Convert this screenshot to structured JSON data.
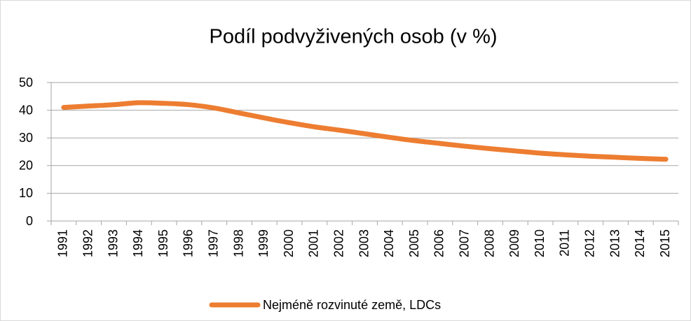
{
  "chart_data": {
    "type": "line",
    "title": "Podíl podvyživených osob (v %)",
    "categories": [
      "1991",
      "1992",
      "1993",
      "1994",
      "1995",
      "1996",
      "1997",
      "1998",
      "1999",
      "2000",
      "2001",
      "2002",
      "2003",
      "2004",
      "2005",
      "2006",
      "2007",
      "2008",
      "2009",
      "2010",
      "2011",
      "2012",
      "2013",
      "2014",
      "2015"
    ],
    "series": [
      {
        "name": "Nejméně rozvinuté země, LDCs",
        "color": "#ED7D31",
        "values": [
          41,
          41.5,
          42,
          42.7,
          42.5,
          42,
          40.8,
          39,
          37.2,
          35.5,
          34,
          32.8,
          31.5,
          30.2,
          29,
          28,
          27,
          26.1,
          25.3,
          24.5,
          23.9,
          23.4,
          23,
          22.6,
          22.3
        ]
      }
    ],
    "ylim": [
      0,
      50
    ],
    "yticks": [
      0,
      10,
      20,
      30,
      40,
      50
    ],
    "grid": true,
    "legend": "bottom"
  }
}
